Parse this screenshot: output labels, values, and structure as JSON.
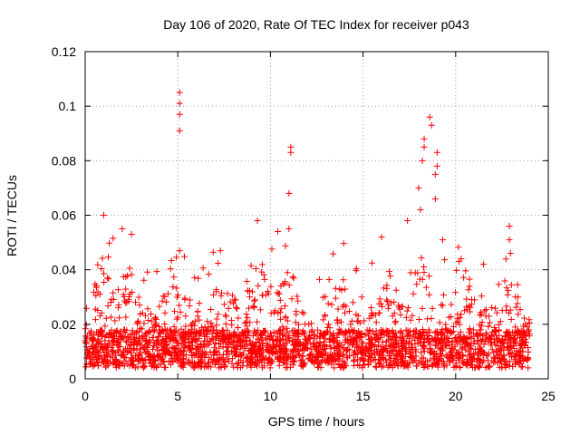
{
  "chart_data": {
    "type": "scatter",
    "title": "Day 106 of 2020, Rate Of TEC Index for receiver p043",
    "xlabel": "GPS time / hours",
    "ylabel": "ROTI / TECUs",
    "xlim": [
      0,
      25
    ],
    "ylim": [
      0,
      0.12
    ],
    "xticks": [
      0,
      5,
      10,
      15,
      20,
      25
    ],
    "yticks": [
      0,
      0.02,
      0.04,
      0.06,
      0.08,
      0.1,
      0.12
    ],
    "xtick_labels": [
      "0",
      "5",
      "10",
      "15",
      "20",
      "25"
    ],
    "ytick_labels": [
      "0",
      "0.02",
      "0.04",
      "0.06",
      "0.08",
      "0.1",
      "0.12"
    ],
    "grid": true,
    "marker": "+",
    "color": "#ff0000",
    "x_data_range": [
      0,
      24
    ],
    "series": [
      {
        "name": "ROTI",
        "note": "dense band of points, mostly 0.003 to 0.03 TECU/s, across 0 to 24 h; notable peaks listed below",
        "peaks": [
          {
            "x": 5.1,
            "y": 0.105
          },
          {
            "x": 5.1,
            "y": 0.101
          },
          {
            "x": 5.1,
            "y": 0.097
          },
          {
            "x": 5.1,
            "y": 0.091
          },
          {
            "x": 11.1,
            "y": 0.085
          },
          {
            "x": 11.1,
            "y": 0.083
          },
          {
            "x": 11.0,
            "y": 0.068
          },
          {
            "x": 18.6,
            "y": 0.096
          },
          {
            "x": 18.7,
            "y": 0.093
          },
          {
            "x": 18.3,
            "y": 0.088
          },
          {
            "x": 18.3,
            "y": 0.085
          },
          {
            "x": 18.2,
            "y": 0.08
          },
          {
            "x": 19.0,
            "y": 0.083
          },
          {
            "x": 19.0,
            "y": 0.078
          },
          {
            "x": 18.9,
            "y": 0.075
          },
          {
            "x": 18.9,
            "y": 0.066
          },
          {
            "x": 18.0,
            "y": 0.07
          },
          {
            "x": 18.1,
            "y": 0.062
          },
          {
            "x": 1.0,
            "y": 0.06
          },
          {
            "x": 9.3,
            "y": 0.058
          },
          {
            "x": 17.4,
            "y": 0.058
          },
          {
            "x": 22.9,
            "y": 0.056
          },
          {
            "x": 2.0,
            "y": 0.055
          },
          {
            "x": 11.0,
            "y": 0.055
          },
          {
            "x": 10.4,
            "y": 0.054
          },
          {
            "x": 2.5,
            "y": 0.053
          },
          {
            "x": 16.0,
            "y": 0.052
          },
          {
            "x": 19.3,
            "y": 0.051
          },
          {
            "x": 22.9,
            "y": 0.051
          },
          {
            "x": 5.1,
            "y": 0.047
          },
          {
            "x": 7.3,
            "y": 0.047
          },
          {
            "x": 20.3,
            "y": 0.044
          },
          {
            "x": 21.5,
            "y": 0.042
          }
        ]
      }
    ]
  }
}
